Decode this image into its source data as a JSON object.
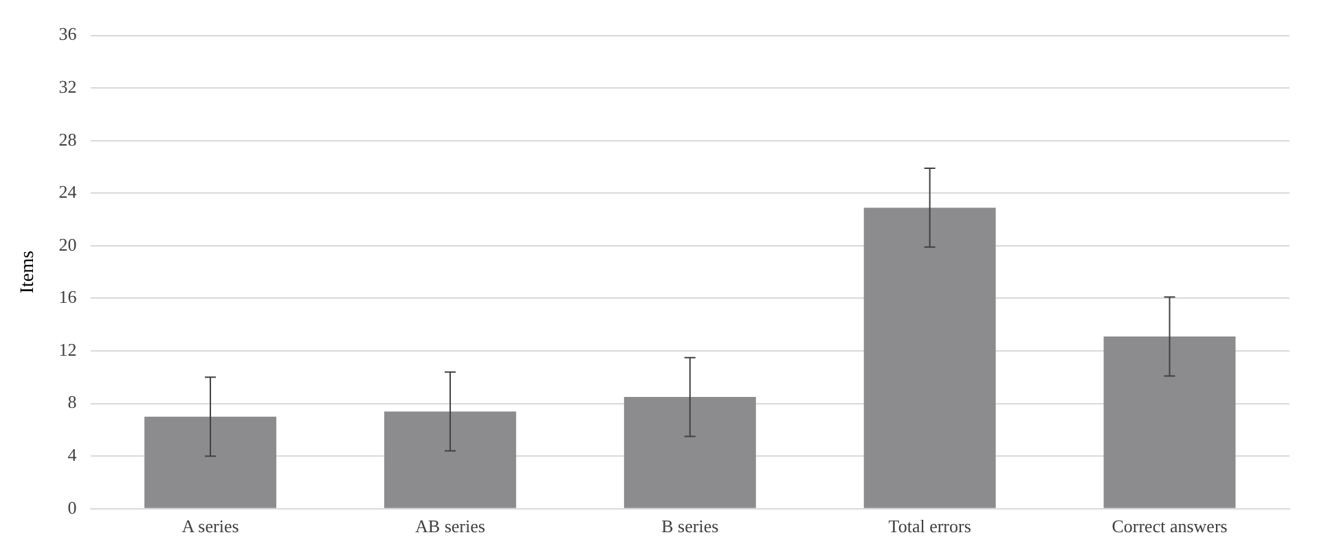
{
  "chart_data": {
    "type": "bar",
    "ylabel": "Items",
    "categories": [
      "A series",
      "AB series",
      "B series",
      "Total errors",
      "Correct answers"
    ],
    "values": [
      7.0,
      7.4,
      8.5,
      22.9,
      13.1
    ],
    "errors": [
      3,
      3,
      3,
      3,
      3
    ],
    "color": "#8c8c8e",
    "ylim": [
      0,
      36
    ],
    "yticks": [
      0,
      4,
      8,
      12,
      16,
      20,
      24,
      28,
      32,
      36
    ],
    "grid": "y",
    "legend": false
  }
}
